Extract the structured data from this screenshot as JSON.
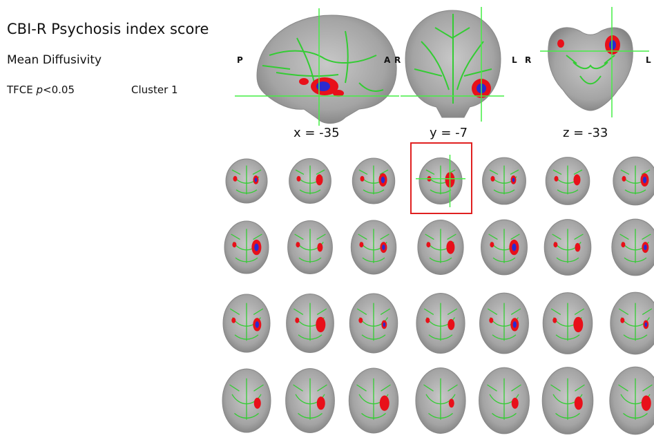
{
  "header": {
    "title": "CBI-R Psychosis index score",
    "measure": "Mean Diffusivity",
    "threshold_prefix": "TFCE ",
    "threshold_p": "p",
    "threshold_suffix": "<0.05",
    "cluster": "Cluster 1"
  },
  "ortho_views": {
    "sagittal": {
      "coord": "x = -35",
      "left_label": "P",
      "right_label": "A"
    },
    "coronal": {
      "coord": "y = -7",
      "left_label": "R",
      "right_label": "L"
    },
    "axial": {
      "coord": "z = -33",
      "left_label": "R",
      "right_label": "L"
    }
  },
  "montage": {
    "rows": 4,
    "cols": 7,
    "highlighted": {
      "row": 1,
      "col": 4
    }
  },
  "colors": {
    "tract": "#33cc33",
    "cluster_red": "#e8101a",
    "cluster_blue": "#2a2ad0",
    "crosshair": "#44ee44",
    "highlight_box": "#e02020"
  }
}
